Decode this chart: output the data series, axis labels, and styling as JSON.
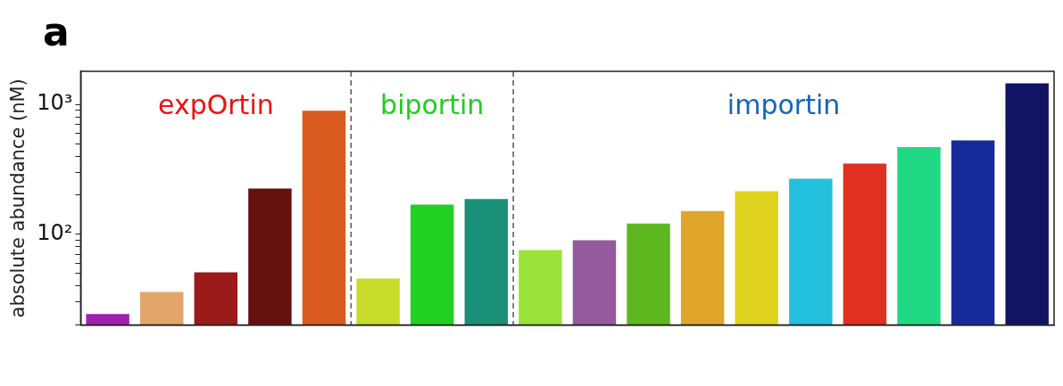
{
  "chart_data": {
    "type": "bar",
    "ylabel": "absolute abundance (nM)",
    "annotations": [
      "a",
      "expOrtin",
      "biportin",
      "importin"
    ],
    "categories": [
      null,
      null,
      null,
      null,
      null,
      null,
      null,
      null,
      null,
      null,
      null,
      null,
      null,
      null,
      null,
      null,
      null,
      null
    ],
    "values": [
      24.3,
      36,
      51,
      225,
      895,
      45.5,
      169,
      187,
      75.5,
      90,
      121,
      151,
      215,
      268,
      351,
      469,
      528,
      1456
    ],
    "colors": [
      "#a020b0",
      "#e3a56b",
      "#9b1a1a",
      "#63100f",
      "#d95b1f",
      "#c8dc2a",
      "#22d024",
      "#1a9078",
      "#9be33b",
      "#945a9c",
      "#5fb71f",
      "#e0a52b",
      "#dfd31f",
      "#22c0dc",
      "#e03020",
      "#20d883",
      "#162a9a",
      "#101462"
    ],
    "log": true,
    "ylim": [
      20,
      1800
    ],
    "yticks": [
      {
        "value": 20,
        "label": null
      },
      {
        "value": 30,
        "label": null
      },
      {
        "value": 40,
        "label": null
      },
      {
        "value": 50,
        "label": null
      },
      {
        "value": 60,
        "label": null
      },
      {
        "value": 70,
        "label": null
      },
      {
        "value": 80,
        "label": null
      },
      {
        "value": 90,
        "label": null
      },
      {
        "value": 100,
        "label": "10²"
      },
      {
        "value": 200,
        "label": null
      },
      {
        "value": 300,
        "label": null
      },
      {
        "value": 400,
        "label": null
      },
      {
        "value": 500,
        "label": null
      },
      {
        "value": 600,
        "label": null
      },
      {
        "value": 700,
        "label": null
      },
      {
        "value": 800,
        "label": null
      },
      {
        "value": 900,
        "label": null
      },
      {
        "value": 1000,
        "label": "10³"
      }
    ],
    "grid": false,
    "legend": false
  }
}
